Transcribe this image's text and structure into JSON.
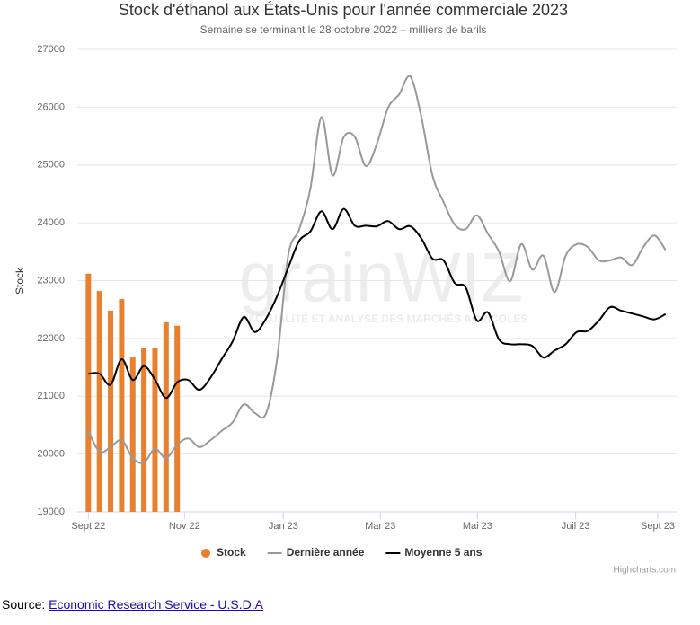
{
  "chart_data": {
    "type": "bar-line",
    "title": "Stock d'éthanol aux États-Unis pour l'année commerciale 2023",
    "subtitle": "Semaine se terminant le 28 octobre 2022 – milliers de barils",
    "y_label": "Stock",
    "xlim": [
      -1,
      53
    ],
    "xticks": [
      {
        "value": 0,
        "label": "Sept 22"
      },
      {
        "value": 8.66,
        "label": "Nov 22"
      },
      {
        "value": 17.57,
        "label": "Jan 23"
      },
      {
        "value": 26.3,
        "label": "Mar 23"
      },
      {
        "value": 35.06,
        "label": "Mai 23"
      },
      {
        "value": 43.9,
        "label": "Juil 23"
      },
      {
        "value": 51.3,
        "label": "Sept 23"
      }
    ],
    "ylim": [
      19000,
      27000
    ],
    "yticks": [
      19000,
      20000,
      21000,
      22000,
      23000,
      24000,
      25000,
      26000,
      27000
    ],
    "grid": true,
    "series": [
      {
        "name": "Stock",
        "type": "bar",
        "color": "#e8802f",
        "values": [
          23120,
          22820,
          22480,
          22680,
          21670,
          21840,
          21830,
          22280,
          22220
        ]
      },
      {
        "name": "Dernière année",
        "type": "line",
        "color": "#999999",
        "values": [
          20400,
          20040,
          20120,
          20240,
          19930,
          19850,
          20090,
          19930,
          20160,
          20270,
          20120,
          20240,
          20400,
          20550,
          20860,
          20710,
          20700,
          21640,
          23430,
          23890,
          24590,
          25830,
          24820,
          25480,
          25490,
          24980,
          25370,
          25990,
          26220,
          26530,
          25830,
          24820,
          24360,
          23970,
          23890,
          24130,
          23810,
          23500,
          22990,
          23630,
          23190,
          23430,
          22800,
          23430,
          23630,
          23580,
          23350,
          23350,
          23400,
          23270,
          23580,
          23780,
          23530
        ]
      },
      {
        "name": "Moyenne 5 ans",
        "type": "line",
        "color": "#000000",
        "values": [
          21390,
          21390,
          21200,
          21640,
          21280,
          21520,
          21290,
          20970,
          21240,
          21280,
          21110,
          21320,
          21640,
          21950,
          22370,
          22110,
          22340,
          22730,
          23220,
          23690,
          23850,
          24200,
          23890,
          24240,
          23950,
          23950,
          23940,
          24030,
          23890,
          23940,
          23730,
          23380,
          23350,
          22960,
          22880,
          22310,
          22450,
          21980,
          21900,
          21900,
          21870,
          21670,
          21790,
          21900,
          22110,
          22130,
          22310,
          22540,
          22480,
          22430,
          22380,
          22330,
          22420
        ]
      }
    ]
  },
  "watermark": {
    "brand": "grainWIZ",
    "tagline": "FACTUALITÉ ET ANALYSE DES MARCHÉS AGRICOLES"
  },
  "credits": "Highcharts.com",
  "source_label": "Source:",
  "source_link": "Economic Research Service - U.S.D.A"
}
